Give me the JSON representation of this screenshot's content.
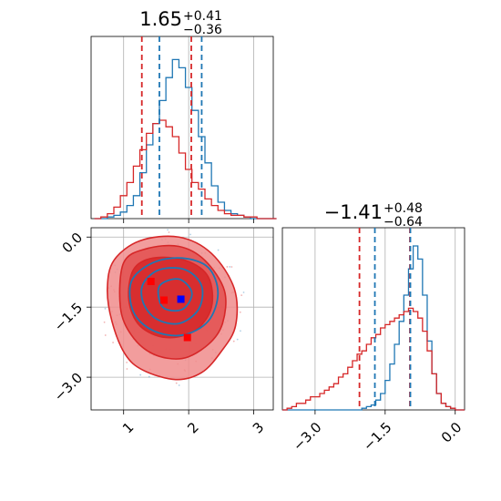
{
  "chart_data": {
    "type": "corner",
    "colors": {
      "blue": "#1f77b4",
      "red": "#d62728",
      "grid": "#b0b0b0"
    },
    "parameters": [
      {
        "title": {
          "main": "1.65",
          "sup": "+0.41",
          "sub": "−0.36"
        },
        "range": [
          0.5,
          3.3
        ],
        "ticks": [
          1,
          2,
          3
        ],
        "tick_labels": [
          "1",
          "2",
          "3"
        ]
      },
      {
        "title": {
          "main": "−1.41",
          "sup": "+0.48",
          "sub": "−0.64"
        },
        "range": [
          -3.7,
          0.2
        ],
        "ticks": [
          -3.0,
          -1.5,
          0.0
        ],
        "tick_labels": [
          "−3.0",
          "−1.5",
          "0.0"
        ]
      }
    ],
    "histograms": [
      {
        "parameter": 0,
        "quantiles": {
          "blue": [
            1.55,
            2.2
          ],
          "red": [
            1.28,
            2.04
          ]
        },
        "series": [
          {
            "color": "blue",
            "x_start": 0.55,
            "bin_width": 0.1,
            "values": [
              0.0,
              0.0,
              0.01,
              0.02,
              0.04,
              0.08,
              0.14,
              0.28,
              0.45,
              0.58,
              0.72,
              0.86,
              0.97,
              0.92,
              0.8,
              0.66,
              0.5,
              0.34,
              0.2,
              0.1,
              0.05,
              0.03,
              0.02,
              0.01,
              0.0,
              0.0,
              0.0,
              0.0
            ]
          },
          {
            "color": "red",
            "x_start": 0.55,
            "bin_width": 0.1,
            "values": [
              0.0,
              0.01,
              0.03,
              0.07,
              0.14,
              0.22,
              0.32,
              0.42,
              0.52,
              0.58,
              0.6,
              0.56,
              0.5,
              0.4,
              0.3,
              0.22,
              0.18,
              0.12,
              0.08,
              0.05,
              0.03,
              0.02,
              0.02,
              0.01,
              0.01,
              0.0,
              0.0,
              0.0
            ]
          }
        ]
      },
      {
        "parameter": 1,
        "quantiles": {
          "blue": [
            -1.72,
            -0.96
          ],
          "red": [
            -2.05,
            -0.97
          ]
        },
        "series": [
          {
            "color": "blue",
            "x_start": -3.7,
            "bin_width": 0.1,
            "values": [
              0.0,
              0.0,
              0.0,
              0.0,
              0.0,
              0.0,
              0.0,
              0.0,
              0.0,
              0.0,
              0.0,
              0.0,
              0.0,
              0.0,
              0.0,
              0.0,
              0.0,
              0.01,
              0.02,
              0.03,
              0.06,
              0.1,
              0.18,
              0.28,
              0.4,
              0.54,
              0.7,
              0.86,
              1.0,
              0.92,
              0.7,
              0.42,
              0.22,
              0.1,
              0.04,
              0.02,
              0.01,
              0.0,
              0.0
            ]
          },
          {
            "color": "red",
            "x_start": -3.7,
            "bin_width": 0.1,
            "values": [
              0.0,
              0.01,
              0.02,
              0.04,
              0.04,
              0.06,
              0.08,
              0.08,
              0.1,
              0.12,
              0.14,
              0.16,
              0.2,
              0.22,
              0.26,
              0.3,
              0.34,
              0.36,
              0.4,
              0.44,
              0.46,
              0.5,
              0.52,
              0.54,
              0.56,
              0.58,
              0.6,
              0.62,
              0.6,
              0.56,
              0.48,
              0.36,
              0.22,
              0.1,
              0.04,
              0.02,
              0.01,
              0.0,
              0.0
            ]
          }
        ]
      }
    ],
    "scatter_2d": {
      "x_parameter": 0,
      "y_parameter": 1,
      "red_contours": [
        [
          [
            0.85,
            -0.5
          ],
          [
            1.25,
            -0.08
          ],
          [
            1.85,
            0.0
          ],
          [
            2.35,
            -0.35
          ],
          [
            2.7,
            -1.1
          ],
          [
            2.72,
            -1.9
          ],
          [
            2.5,
            -2.45
          ],
          [
            2.2,
            -2.9
          ],
          [
            1.8,
            -3.05
          ],
          [
            1.3,
            -2.85
          ],
          [
            1.02,
            -2.5
          ],
          [
            0.82,
            -1.8
          ],
          [
            0.75,
            -1.1
          ]
        ],
        [
          [
            1.0,
            -0.55
          ],
          [
            1.35,
            -0.25
          ],
          [
            1.85,
            -0.2
          ],
          [
            2.25,
            -0.5
          ],
          [
            2.55,
            -1.15
          ],
          [
            2.52,
            -1.85
          ],
          [
            2.3,
            -2.3
          ],
          [
            1.9,
            -2.6
          ],
          [
            1.45,
            -2.5
          ],
          [
            1.12,
            -2.1
          ],
          [
            0.95,
            -1.5
          ]
        ],
        [
          [
            1.15,
            -0.7
          ],
          [
            1.45,
            -0.45
          ],
          [
            1.95,
            -0.5
          ],
          [
            2.3,
            -0.85
          ],
          [
            2.35,
            -1.5
          ],
          [
            2.1,
            -2.0
          ],
          [
            1.65,
            -2.15
          ],
          [
            1.25,
            -1.9
          ],
          [
            1.08,
            -1.35
          ]
        ]
      ],
      "blue_contours": [
        [
          [
            1.12,
            -0.95
          ],
          [
            1.45,
            -0.55
          ],
          [
            1.9,
            -0.45
          ],
          [
            2.3,
            -0.65
          ],
          [
            2.45,
            -1.2
          ],
          [
            2.3,
            -1.8
          ],
          [
            1.9,
            -2.1
          ],
          [
            1.45,
            -2.0
          ],
          [
            1.15,
            -1.6
          ]
        ],
        [
          [
            1.3,
            -1.0
          ],
          [
            1.55,
            -0.7
          ],
          [
            1.95,
            -0.7
          ],
          [
            2.2,
            -1.05
          ],
          [
            2.15,
            -1.55
          ],
          [
            1.85,
            -1.85
          ],
          [
            1.5,
            -1.75
          ],
          [
            1.3,
            -1.4
          ]
        ],
        [
          [
            1.55,
            -1.05
          ],
          [
            1.85,
            -0.9
          ],
          [
            2.05,
            -1.2
          ],
          [
            1.9,
            -1.55
          ],
          [
            1.6,
            -1.5
          ]
        ]
      ],
      "markers": [
        {
          "color": "red",
          "x": 1.42,
          "y": -0.95
        },
        {
          "color": "red",
          "x": 1.62,
          "y": -1.35
        },
        {
          "color": "red",
          "x": 1.98,
          "y": -2.15
        },
        {
          "color": "blue",
          "x": 1.88,
          "y": -1.33
        }
      ]
    }
  }
}
